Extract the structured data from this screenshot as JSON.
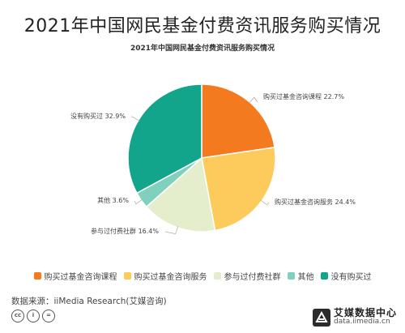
{
  "header": {
    "title": "2021年中国网民基金付费资讯服务购买情况"
  },
  "chart_data": {
    "type": "pie",
    "title": "2021年中国网民基金付费资讯服务购买情况",
    "slices": [
      {
        "label": "购买过基金咨询课程",
        "value": 22.7,
        "display": "购买过基金咨询课程 22.7%",
        "color": "#f47a20"
      },
      {
        "label": "购买过基金咨询服务",
        "value": 24.4,
        "display": "购买过基金咨询服务 24.4%",
        "color": "#fccb5b"
      },
      {
        "label": "参与过付费社群",
        "value": 16.4,
        "display": "参与过付费社群 16.4%",
        "color": "#e4eecd"
      },
      {
        "label": "其他",
        "value": 3.6,
        "display": "其他 3.6%",
        "color": "#7fd0bd"
      },
      {
        "label": "没有购买过",
        "value": 32.9,
        "display": "没有购买过 32.9%",
        "color": "#13a58b"
      }
    ],
    "legend_position": "bottom"
  },
  "footer": {
    "source": "数据来源：iiMedia Research(艾媒咨询)",
    "brand_name": "艾媒数据中心",
    "brand_url": "data.iimedia.cn",
    "license_icons": [
      "cc",
      "by",
      "equals"
    ]
  }
}
